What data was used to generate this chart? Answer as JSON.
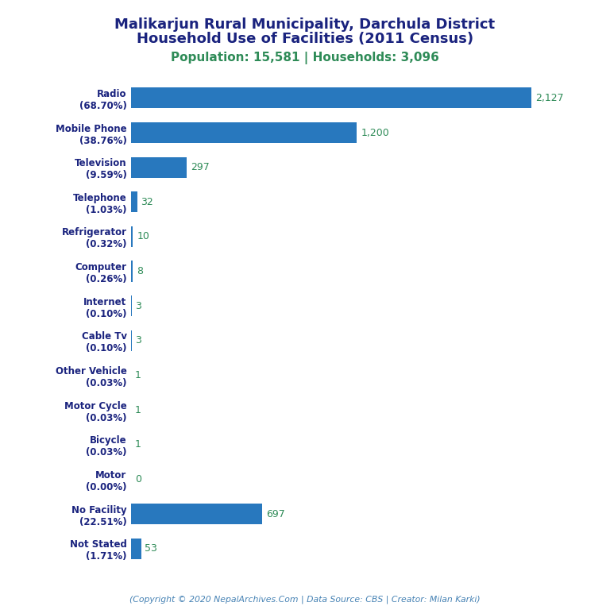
{
  "title_line1": "Malikarjun Rural Municipality, Darchula District",
  "title_line2": "Household Use of Facilities (2011 Census)",
  "subtitle": "Population: 15,581 | Households: 3,096",
  "categories": [
    "Radio\n(68.70%)",
    "Mobile Phone\n(38.76%)",
    "Television\n(9.59%)",
    "Telephone\n(1.03%)",
    "Refrigerator\n(0.32%)",
    "Computer\n(0.26%)",
    "Internet\n(0.10%)",
    "Cable Tv\n(0.10%)",
    "Other Vehicle\n(0.03%)",
    "Motor Cycle\n(0.03%)",
    "Bicycle\n(0.03%)",
    "Motor\n(0.00%)",
    "No Facility\n(22.51%)",
    "Not Stated\n(1.71%)"
  ],
  "values": [
    2127,
    1200,
    297,
    32,
    10,
    8,
    3,
    3,
    1,
    1,
    1,
    0,
    697,
    53
  ],
  "value_labels": [
    "2,127",
    "1,200",
    "297",
    "32",
    "10",
    "8",
    "3",
    "3",
    "1",
    "1",
    "1",
    "0",
    "697",
    "53"
  ],
  "bar_color": "#2878be",
  "value_color": "#2e8b57",
  "title_color": "#1a237e",
  "subtitle_color": "#2e8b57",
  "footer_color": "#4682b4",
  "footer_text": "(Copyright © 2020 NepalArchives.Com | Data Source: CBS | Creator: Milan Karki)",
  "background_color": "#ffffff",
  "xlim": [
    0,
    2350
  ],
  "title_fontsize": 13,
  "subtitle_fontsize": 11,
  "label_fontsize": 8.5,
  "value_fontsize": 9
}
